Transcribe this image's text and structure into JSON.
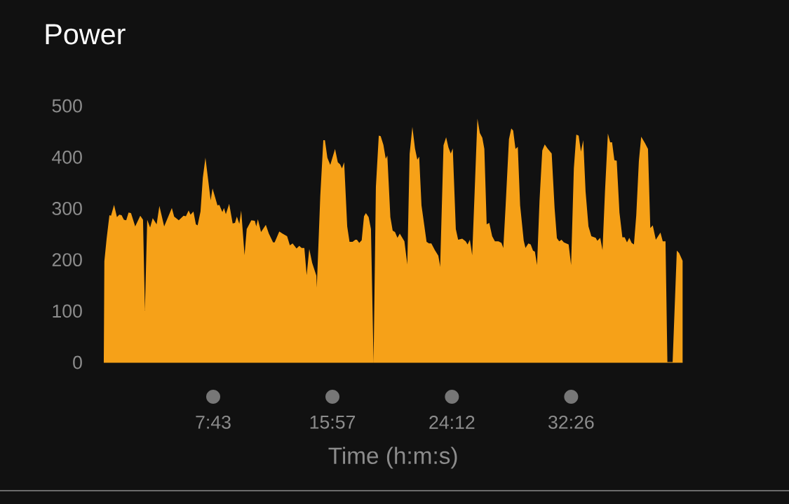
{
  "chart_data": {
    "type": "area",
    "title": "Power",
    "xlabel": "Time (h:m:s)",
    "color": "#f6a118",
    "x": [
      0.16,
      0.2,
      0.36,
      0.55,
      0.66,
      0.87,
      1.07,
      1.23,
      1.39,
      1.55,
      1.71,
      1.87,
      2.04,
      2.33,
      2.68,
      2.87,
      3.0,
      3.16,
      3.36,
      3.54,
      3.81,
      4.0,
      4.33,
      4.86,
      5.02,
      5.34,
      5.67,
      5.83,
      6.02,
      6.15,
      6.35,
      6.52,
      6.64,
      6.84,
      7.0,
      7.18,
      7.54,
      7.67,
      8.01,
      8.14,
      8.35,
      8.46,
      8.59,
      8.82,
      9.06,
      9.22,
      9.35,
      9.52,
      9.65,
      9.88,
      10.03,
      10.35,
      10.59,
      10.69,
      10.8,
      11.02,
      11.35,
      11.56,
      11.85,
      11.96,
      12.28,
      12.5,
      12.82,
      13.01,
      13.2,
      13.47,
      13.66,
      13.82,
      14.01,
      14.17,
      14.35,
      14.55,
      14.84,
      14.87,
      15.11,
      15.32,
      15.43,
      15.6,
      15.8,
      16.13,
      16.32,
      16.48,
      16.61,
      16.76,
      16.97,
      17.13,
      17.34,
      17.53,
      17.64,
      17.8,
      17.97,
      18.13,
      18.26,
      18.45,
      18.61,
      18.79,
      18.95,
      19.15,
      19.28,
      19.47,
      19.63,
      19.74,
      19.95,
      20.11,
      20.27,
      20.44,
      20.6,
      20.92,
      21.12,
      21.28,
      21.47,
      21.65,
      21.81,
      21.94,
      22.1,
      22.45,
      22.62,
      22.78,
      23.02,
      23.26,
      23.39,
      23.62,
      23.8,
      23.96,
      24.12,
      24.26,
      24.47,
      24.63,
      24.91,
      25.15,
      25.28,
      25.44,
      25.6,
      25.77,
      25.96,
      26.13,
      26.3,
      26.44,
      26.6,
      26.78,
      26.98,
      27.17,
      27.41,
      27.62,
      27.75,
      27.91,
      28.14,
      28.3,
      28.43,
      28.59,
      28.75,
      28.91,
      29.16,
      29.28,
      29.48,
      29.64,
      29.8,
      29.93,
      30.08,
      30.25,
      30.44,
      30.61,
      30.8,
      31.09,
      31.29,
      31.45,
      31.61,
      31.77,
      31.93,
      32.26,
      32.43,
      32.62,
      32.79,
      32.95,
      33.11,
      33.27,
      33.43,
      33.63,
      33.83,
      34.13,
      34.24,
      34.44,
      34.6,
      34.77,
      34.97,
      35.13,
      35.26,
      35.42,
      35.58,
      35.77,
      35.97,
      36.13,
      36.29,
      36.45,
      36.61,
      36.77,
      36.93,
      37.11,
      37.27,
      37.52,
      37.74,
      37.9,
      38.07,
      38.28,
      38.6,
      38.76,
      38.95,
      39.08,
      39.44,
      39.73,
      39.89,
      40.13
    ],
    "values": [
      0,
      197,
      242,
      287,
      286,
      307,
      283,
      288,
      287,
      278,
      277,
      292,
      291,
      265,
      286,
      278,
      101,
      278,
      263,
      281,
      269,
      305,
      265,
      301,
      284,
      277,
      286,
      285,
      296,
      288,
      294,
      269,
      267,
      294,
      360,
      399,
      316,
      339,
      306,
      307,
      293,
      301,
      289,
      309,
      271,
      272,
      284,
      270,
      296,
      209,
      260,
      277,
      276,
      265,
      279,
      254,
      268,
      251,
      234,
      234,
      255,
      251,
      246,
      228,
      232,
      222,
      227,
      223,
      223,
      170,
      221,
      194,
      169,
      146,
      324,
      433,
      433,
      399,
      385,
      416,
      390,
      386,
      378,
      390,
      265,
      235,
      235,
      239,
      239,
      233,
      238,
      285,
      291,
      283,
      260,
      0,
      342,
      442,
      441,
      424,
      397,
      403,
      283,
      257,
      254,
      243,
      251,
      236,
      191,
      406,
      459,
      417,
      395,
      401,
      306,
      235,
      232,
      232,
      219,
      208,
      187,
      423,
      439,
      419,
      407,
      417,
      260,
      239,
      241,
      236,
      230,
      239,
      209,
      333,
      475,
      447,
      438,
      416,
      269,
      272,
      246,
      236,
      236,
      233,
      223,
      306,
      435,
      456,
      452,
      416,
      420,
      306,
      237,
      223,
      232,
      230,
      218,
      216,
      190,
      315,
      413,
      425,
      417,
      407,
      301,
      242,
      236,
      239,
      234,
      230,
      190,
      378,
      444,
      442,
      411,
      433,
      333,
      265,
      246,
      243,
      237,
      243,
      219,
      333,
      446,
      429,
      429,
      394,
      393,
      292,
      244,
      244,
      234,
      243,
      233,
      230,
      287,
      392,
      440,
      428,
      416,
      262,
      267,
      239,
      253,
      236,
      236,
      0,
      0,
      218,
      213,
      198
    ],
    "xlim": [
      0.16,
      40.13
    ],
    "ylim": [
      0,
      500
    ],
    "xticks": [
      {
        "value": 7.7167,
        "label": "7:43"
      },
      {
        "value": 15.95,
        "label": "15:57"
      },
      {
        "value": 24.2,
        "label": "24:12"
      },
      {
        "value": 32.4333,
        "label": "32:26"
      }
    ],
    "yticks": [
      0,
      100,
      200,
      300,
      400,
      500
    ]
  }
}
